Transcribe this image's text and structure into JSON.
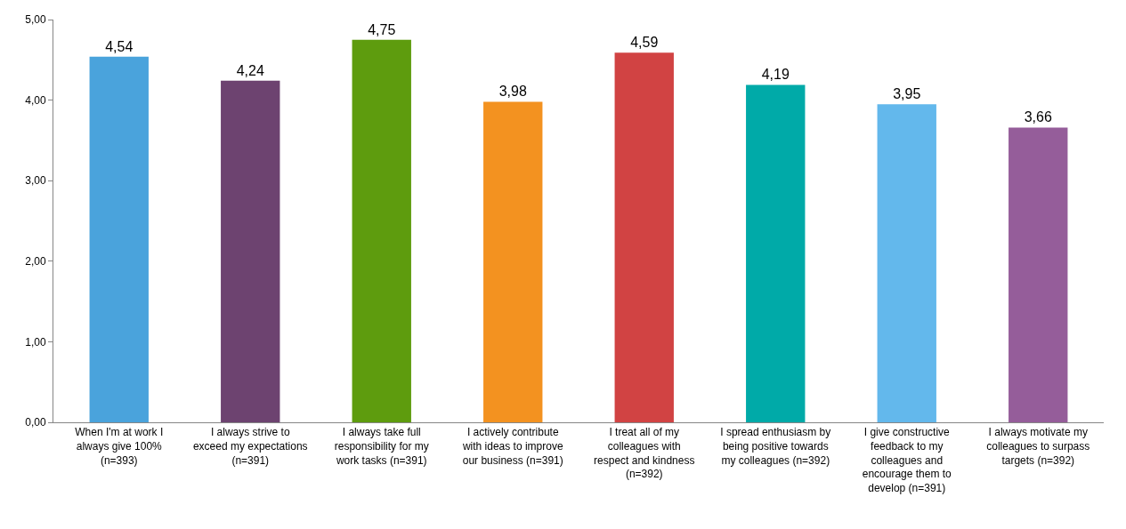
{
  "chart_data": {
    "type": "bar",
    "categories": [
      "When I'm at work I always give 100% (n=393)",
      "I always strive to exceed my expectations (n=391)",
      "I always take full responsibility for my work tasks (n=391)",
      "I actively contribute with ideas to improve our business (n=391)",
      "I treat all of my colleagues with respect and kindness (n=392)",
      "I spread enthusiasm by being positive towards my colleagues (n=392)",
      "I give constructive feedback to my colleagues and encourage them to develop (n=391)",
      "I always motivate my colleagues to surpass targets (n=392)"
    ],
    "values": [
      4.54,
      4.24,
      4.75,
      3.98,
      4.59,
      4.19,
      3.95,
      3.66
    ],
    "value_labels": [
      "4,54",
      "4,24",
      "4,75",
      "3,98",
      "4,59",
      "4,19",
      "3,95",
      "3,66"
    ],
    "colors": [
      "#4aa3dc",
      "#6d4370",
      "#5e9c0e",
      "#f39220",
      "#d14343",
      "#00aaa8",
      "#63b8ec",
      "#955d9a"
    ],
    "ylim": [
      0,
      5
    ],
    "yticks": [
      {
        "value": 0,
        "label": "0,00"
      },
      {
        "value": 1,
        "label": "1,00"
      },
      {
        "value": 2,
        "label": "2,00"
      },
      {
        "value": 3,
        "label": "3,00"
      },
      {
        "value": 4,
        "label": "4,00"
      },
      {
        "value": 5,
        "label": "5,00"
      }
    ]
  }
}
